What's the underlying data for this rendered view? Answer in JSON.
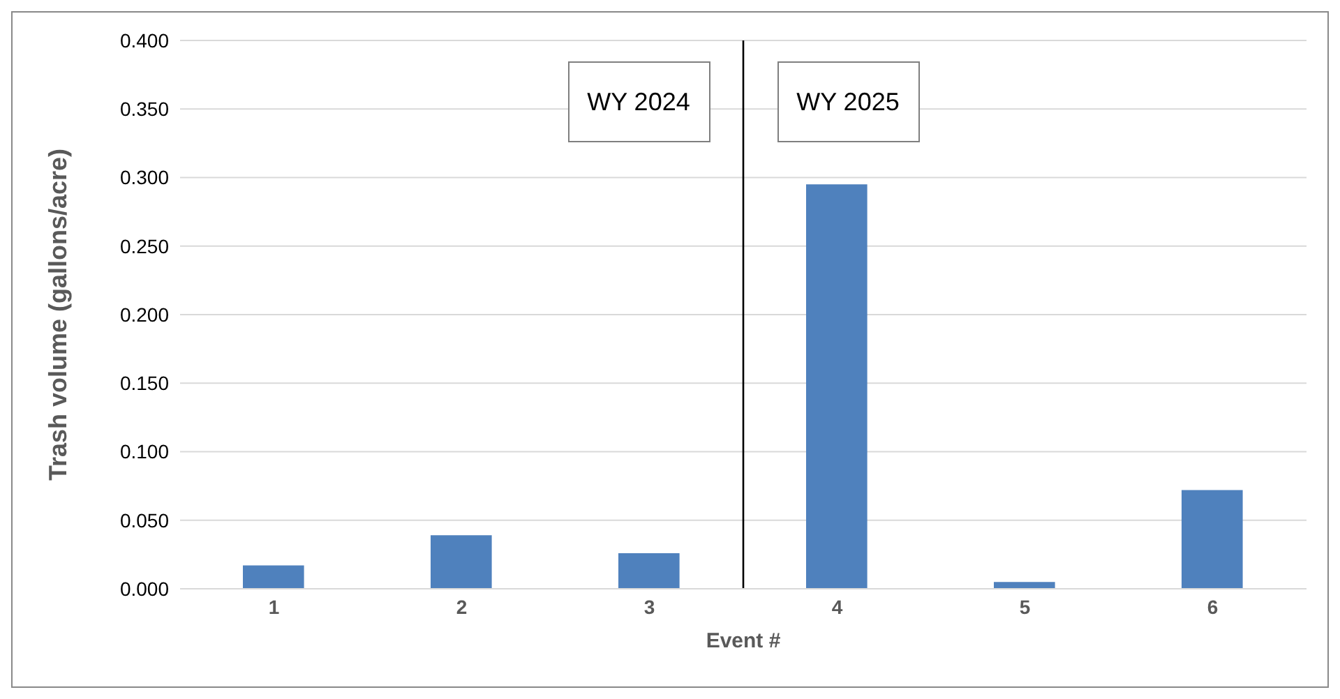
{
  "chart_data": {
    "type": "bar",
    "x": [
      1,
      2,
      3,
      4,
      5,
      6
    ],
    "values": [
      0.017,
      0.039,
      0.026,
      0.295,
      0.005,
      0.072
    ],
    "color": "#4f81bd",
    "xlim": [
      0.5,
      6.5
    ],
    "xticks": [
      1,
      2,
      3,
      4,
      5,
      6
    ],
    "ylim": [
      0,
      0.4
    ],
    "yticks": [
      {
        "value": 0,
        "label": "0.000"
      },
      {
        "value": 0.05,
        "label": "0.050"
      },
      {
        "value": 0.1,
        "label": "0.100"
      },
      {
        "value": 0.15,
        "label": "0.150"
      },
      {
        "value": 0.2,
        "label": "0.200"
      },
      {
        "value": 0.25,
        "label": "0.250"
      },
      {
        "value": 0.3,
        "label": "0.300"
      },
      {
        "value": 0.35,
        "label": "0.350"
      },
      {
        "value": 0.4,
        "label": "0.400"
      }
    ],
    "xlabel": "Event #",
    "ylabel": "Trash volume  (gallons/acre)",
    "grid": "y",
    "ref_lines": [
      {
        "axis": "x",
        "value": 3.5,
        "color": "#000000"
      }
    ],
    "annotations": [
      "WY 2024",
      "WY 2025"
    ]
  }
}
